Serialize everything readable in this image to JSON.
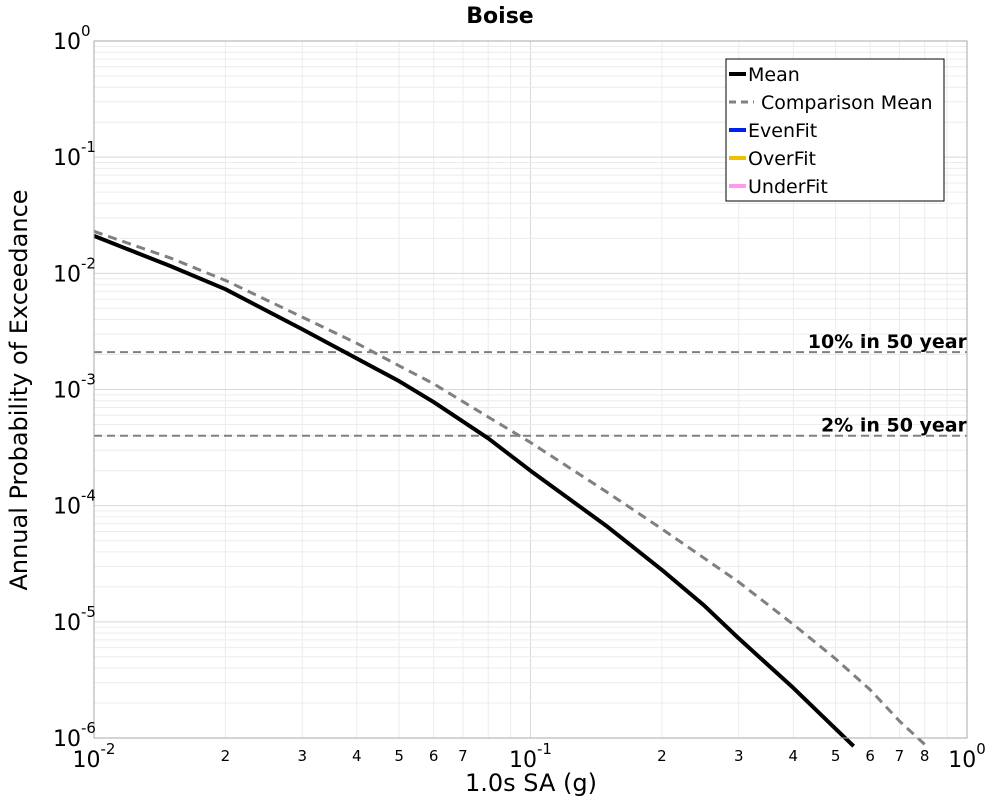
{
  "chart_data": {
    "type": "line",
    "title": "Boise",
    "xlabel": "1.0s SA (g)",
    "ylabel": "Annual Probability of Exceedance",
    "xscale": "log",
    "yscale": "log",
    "xlim": [
      0.01,
      1
    ],
    "ylim": [
      1e-06,
      1
    ],
    "grid": true,
    "legend_position": "top-right",
    "x_major_ticks": [
      {
        "value": 0.01,
        "base": "10",
        "exp": "-2"
      },
      {
        "value": 0.1,
        "base": "10",
        "exp": "-1"
      },
      {
        "value": 1,
        "base": "10",
        "exp": "0"
      }
    ],
    "x_minor_ticks": [
      {
        "value": 0.02,
        "label": "2"
      },
      {
        "value": 0.03,
        "label": "3"
      },
      {
        "value": 0.04,
        "label": "4"
      },
      {
        "value": 0.05,
        "label": "5"
      },
      {
        "value": 0.06,
        "label": "6"
      },
      {
        "value": 0.07,
        "label": "7"
      },
      {
        "value": 0.2,
        "label": "2"
      },
      {
        "value": 0.3,
        "label": "3"
      },
      {
        "value": 0.4,
        "label": "4"
      },
      {
        "value": 0.5,
        "label": "5"
      },
      {
        "value": 0.6,
        "label": "6"
      },
      {
        "value": 0.7,
        "label": "7"
      },
      {
        "value": 0.8,
        "label": "8"
      }
    ],
    "y_major_ticks": [
      {
        "value": 1,
        "base": "10",
        "exp": "0"
      },
      {
        "value": 0.1,
        "base": "10",
        "exp": "-1"
      },
      {
        "value": 0.01,
        "base": "10",
        "exp": "-2"
      },
      {
        "value": 0.001,
        "base": "10",
        "exp": "-3"
      },
      {
        "value": 0.0001,
        "base": "10",
        "exp": "-4"
      },
      {
        "value": 1e-05,
        "base": "10",
        "exp": "-5"
      },
      {
        "value": 1e-06,
        "base": "10",
        "exp": "-6"
      }
    ],
    "series": [
      {
        "name": "Mean",
        "color": "#000000",
        "style": "solid",
        "x": [
          0.01,
          0.015,
          0.02,
          0.03,
          0.04,
          0.05,
          0.06,
          0.08,
          0.1,
          0.15,
          0.2,
          0.25,
          0.3,
          0.4,
          0.5,
          0.55
        ],
        "y": [
          0.021,
          0.0115,
          0.0073,
          0.0033,
          0.00185,
          0.00118,
          0.00078,
          0.00038,
          0.0002,
          6.6e-05,
          2.8e-05,
          1.38e-05,
          7.2e-06,
          2.7e-06,
          1.2e-06,
          8.5e-07
        ]
      },
      {
        "name": "Comparison Mean",
        "color": "#808080",
        "style": "dashed",
        "x": [
          0.01,
          0.015,
          0.02,
          0.03,
          0.04,
          0.05,
          0.06,
          0.08,
          0.1,
          0.15,
          0.2,
          0.3,
          0.4,
          0.5,
          0.6,
          0.7,
          0.8
        ],
        "y": [
          0.023,
          0.0135,
          0.0087,
          0.0042,
          0.0025,
          0.0016,
          0.00112,
          0.00058,
          0.00035,
          0.00013,
          6.3e-05,
          2.2e-05,
          9.5e-06,
          4.8e-06,
          2.6e-06,
          1.4e-06,
          8.8e-07
        ]
      },
      {
        "name": "EvenFit",
        "color": "#0022ee",
        "style": "solid",
        "x": [],
        "y": []
      },
      {
        "name": "OverFit",
        "color": "#f0c000",
        "style": "solid",
        "x": [],
        "y": []
      },
      {
        "name": "UnderFit",
        "color": "#ff99ee",
        "style": "solid",
        "x": [],
        "y": []
      }
    ],
    "reference_lines": [
      {
        "label": "10% in 50 year",
        "y": 0.0021
      },
      {
        "label": "2% in 50 year",
        "y": 0.0004
      }
    ]
  }
}
